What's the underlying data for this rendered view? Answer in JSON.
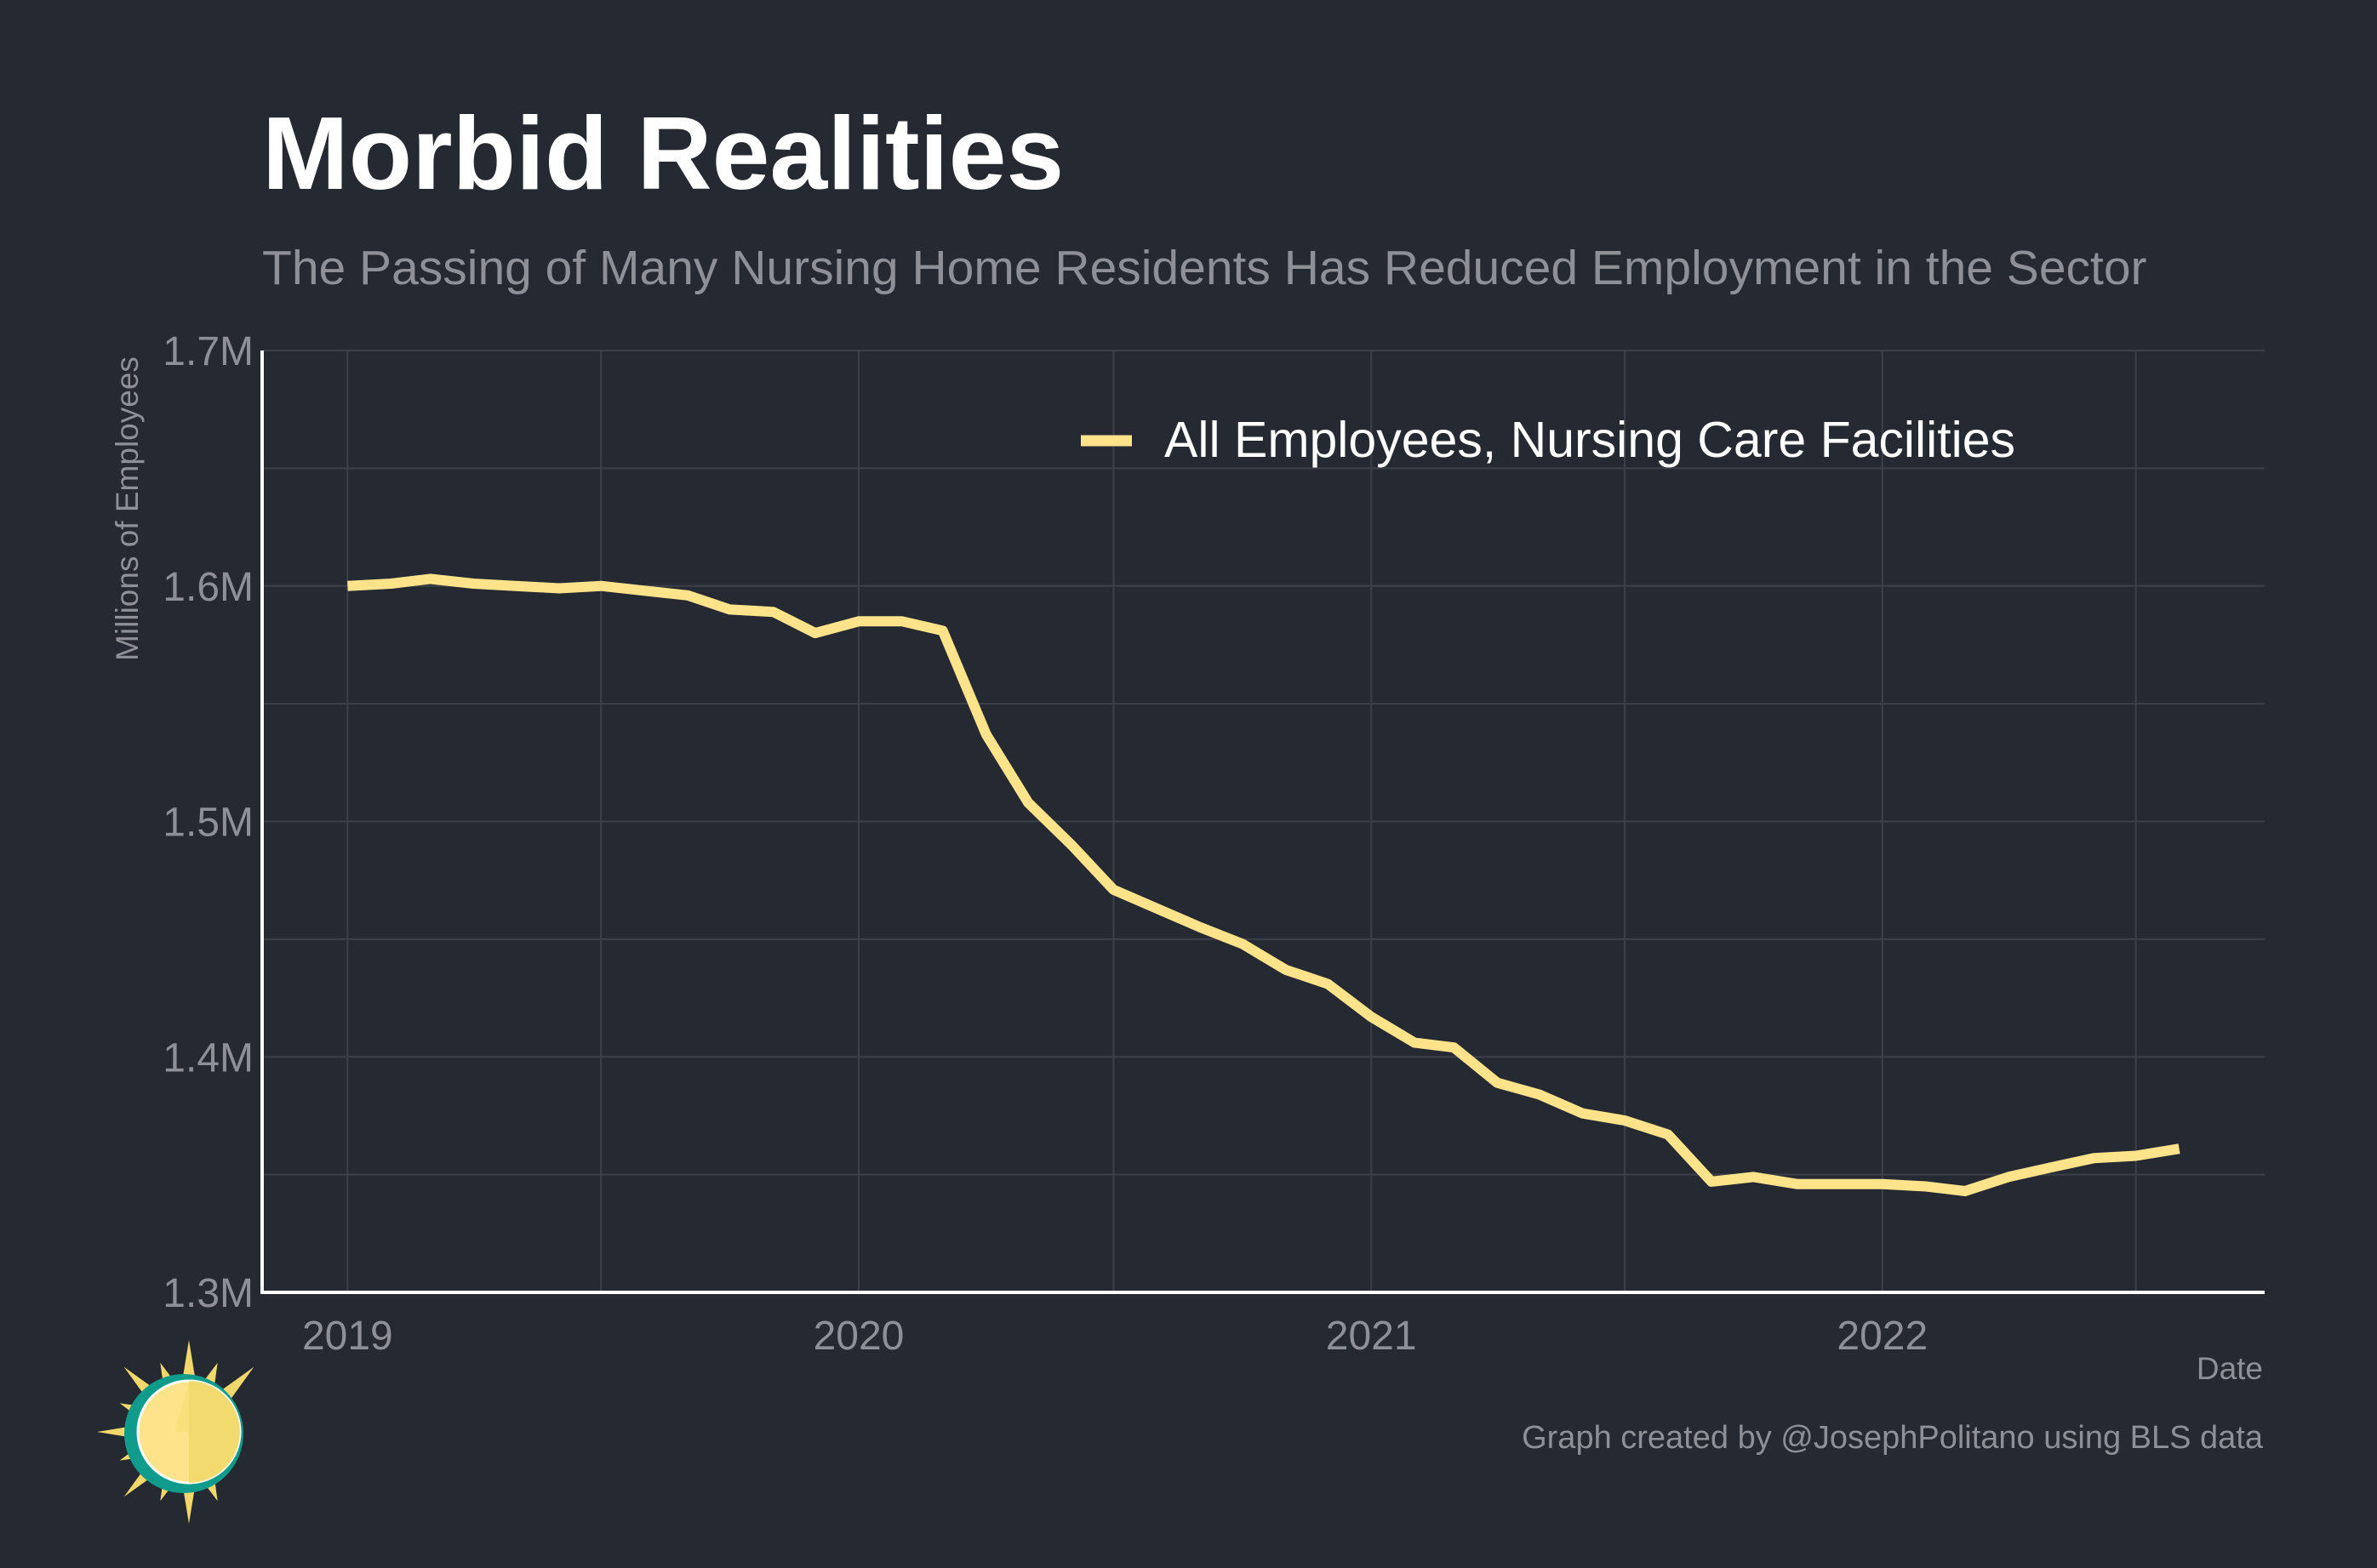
{
  "chart_data": {
    "type": "line",
    "title": "Morbid Realities",
    "subtitle": "The Passing of Many Nursing Home Residents Has Reduced Employment in the Sector",
    "xlabel": "Date",
    "ylabel": "Millions of Employees",
    "xlim": [
      "2018-11-01",
      "2022-10-01"
    ],
    "ylim": [
      1.3,
      1.7
    ],
    "x_ticks": [
      {
        "value": "2019-01-01",
        "label": "2019"
      },
      {
        "value": "2020-01-01",
        "label": "2020"
      },
      {
        "value": "2021-01-01",
        "label": "2021"
      },
      {
        "value": "2022-01-01",
        "label": "2022"
      }
    ],
    "y_ticks": [
      {
        "value": 1.3,
        "label": "1.3M"
      },
      {
        "value": 1.4,
        "label": "1.4M"
      },
      {
        "value": 1.5,
        "label": "1.5M"
      },
      {
        "value": 1.6,
        "label": "1.6M"
      },
      {
        "value": 1.7,
        "label": "1.7M"
      }
    ],
    "y_minor_gridlines": [
      1.35,
      1.45,
      1.55,
      1.65
    ],
    "x_minor_gridlines": [
      "2019-07-01",
      "2020-07-01",
      "2021-07-01",
      "2022-07-01"
    ],
    "grid": true,
    "legend_position": "top-right",
    "series": [
      {
        "name": "All Employees, Nursing Care Facilities",
        "color": "#fee38b",
        "x": [
          "2019-01",
          "2019-02",
          "2019-03",
          "2019-04",
          "2019-05",
          "2019-06",
          "2019-07",
          "2019-08",
          "2019-09",
          "2019-10",
          "2019-11",
          "2019-12",
          "2020-01",
          "2020-02",
          "2020-03",
          "2020-04",
          "2020-05",
          "2020-06",
          "2020-07",
          "2020-08",
          "2020-09",
          "2020-10",
          "2020-11",
          "2020-12",
          "2021-01",
          "2021-02",
          "2021-03",
          "2021-04",
          "2021-05",
          "2021-06",
          "2021-07",
          "2021-08",
          "2021-09",
          "2021-10",
          "2021-11",
          "2021-12",
          "2022-01",
          "2022-02",
          "2022-03",
          "2022-04",
          "2022-05",
          "2022-06",
          "2022-07",
          "2022-08"
        ],
        "values": [
          1.6,
          1.601,
          1.603,
          1.601,
          1.6,
          1.599,
          1.6,
          1.598,
          1.596,
          1.59,
          1.589,
          1.58,
          1.585,
          1.585,
          1.581,
          1.537,
          1.508,
          1.49,
          1.471,
          1.463,
          1.455,
          1.448,
          1.437,
          1.431,
          1.417,
          1.406,
          1.404,
          1.389,
          1.384,
          1.376,
          1.373,
          1.367,
          1.347,
          1.349,
          1.346,
          1.346,
          1.346,
          1.345,
          1.343,
          1.349,
          1.353,
          1.357,
          1.358,
          1.361
        ]
      }
    ]
  },
  "caption": "Graph created by @JosephPolitano using BLS data",
  "logo": {
    "name": "sun-logo",
    "colors": {
      "ring": "#0f9c8d",
      "sun": "#fee38b",
      "rays": "#f2d86a"
    }
  }
}
